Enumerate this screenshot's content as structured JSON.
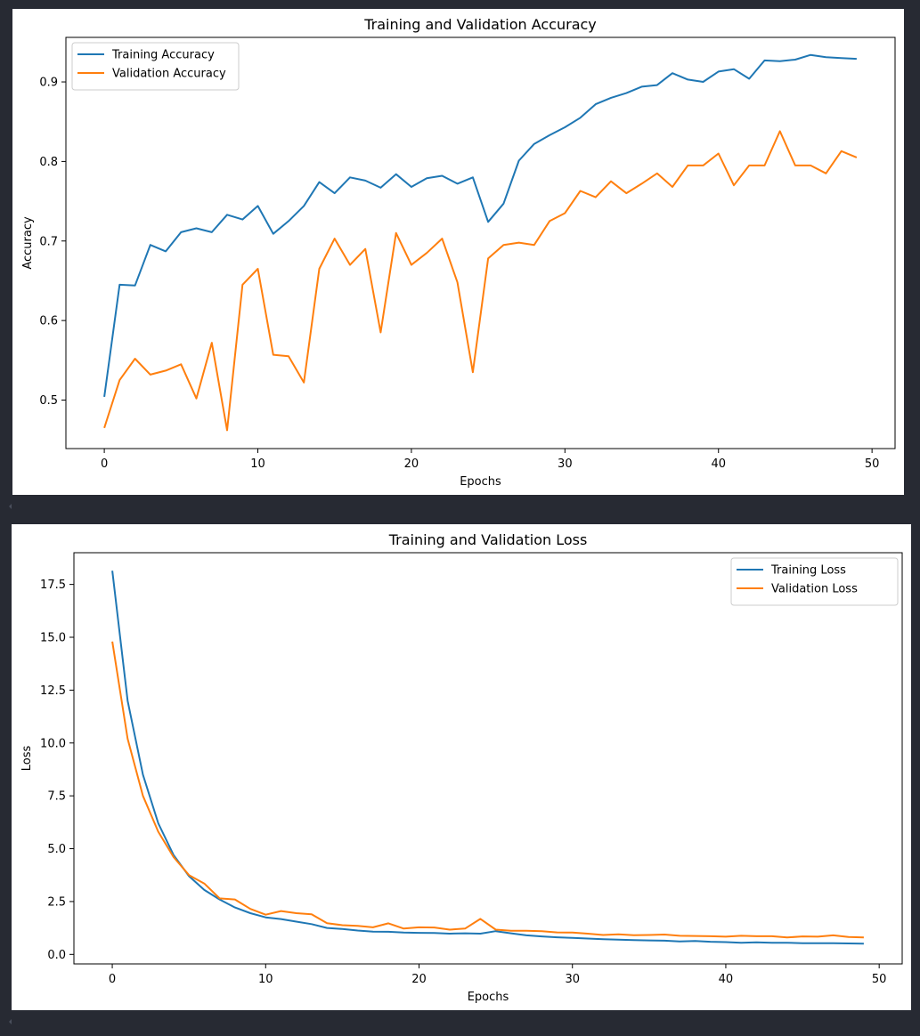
{
  "chart_data": [
    {
      "type": "line",
      "title": "Training and Validation Accuracy",
      "xlabel": "Epochs",
      "ylabel": "Accuracy",
      "xlim": [
        -2.5,
        51.5
      ],
      "ylim": [
        0.439,
        0.956
      ],
      "xticks": [
        0,
        10,
        20,
        30,
        40,
        50
      ],
      "xtick_labels": [
        "0",
        "10",
        "20",
        "30",
        "40",
        "50"
      ],
      "yticks": [
        0.5,
        0.6,
        0.7,
        0.8,
        0.9
      ],
      "ytick_labels": [
        "0.5",
        "0.6",
        "0.7",
        "0.8",
        "0.9"
      ],
      "grid": false,
      "legend_position": "top-left",
      "x": [
        0,
        1,
        2,
        3,
        4,
        5,
        6,
        7,
        8,
        9,
        10,
        11,
        12,
        13,
        14,
        15,
        16,
        17,
        18,
        19,
        20,
        21,
        22,
        23,
        24,
        25,
        26,
        27,
        28,
        29,
        30,
        31,
        32,
        33,
        34,
        35,
        36,
        37,
        38,
        39,
        40,
        41,
        42,
        43,
        44,
        45,
        46,
        47,
        48,
        49
      ],
      "series": [
        {
          "name": "Training Accuracy",
          "color": "#1f77b4",
          "values": [
            0.504,
            0.645,
            0.644,
            0.695,
            0.687,
            0.711,
            0.716,
            0.711,
            0.733,
            0.727,
            0.744,
            0.709,
            0.725,
            0.744,
            0.774,
            0.76,
            0.78,
            0.776,
            0.767,
            0.784,
            0.768,
            0.779,
            0.782,
            0.772,
            0.78,
            0.724,
            0.747,
            0.801,
            0.822,
            0.833,
            0.843,
            0.855,
            0.872,
            0.88,
            0.886,
            0.894,
            0.896,
            0.911,
            0.903,
            0.9,
            0.913,
            0.916,
            0.904,
            0.927,
            0.926,
            0.928,
            0.934,
            0.931,
            0.93,
            0.929
          ]
        },
        {
          "name": "Validation Accuracy",
          "color": "#ff7f0e",
          "values": [
            0.465,
            0.525,
            0.552,
            0.532,
            0.537,
            0.545,
            0.502,
            0.572,
            0.462,
            0.645,
            0.665,
            0.557,
            0.555,
            0.522,
            0.665,
            0.703,
            0.67,
            0.69,
            0.585,
            0.71,
            0.67,
            0.685,
            0.703,
            0.648,
            0.535,
            0.678,
            0.695,
            0.698,
            0.695,
            0.725,
            0.735,
            0.763,
            0.755,
            0.775,
            0.76,
            0.772,
            0.785,
            0.768,
            0.795,
            0.795,
            0.81,
            0.77,
            0.795,
            0.795,
            0.838,
            0.795,
            0.795,
            0.785,
            0.813,
            0.805
          ]
        }
      ]
    },
    {
      "type": "line",
      "title": "Training and Validation Loss",
      "xlabel": "Epochs",
      "ylabel": "Loss",
      "xlim": [
        -2.5,
        51.5
      ],
      "ylim": [
        -0.45,
        19.0
      ],
      "xticks": [
        0,
        10,
        20,
        30,
        40,
        50
      ],
      "xtick_labels": [
        "0",
        "10",
        "20",
        "30",
        "40",
        "50"
      ],
      "yticks": [
        0.0,
        2.5,
        5.0,
        7.5,
        10.0,
        12.5,
        15.0,
        17.5
      ],
      "ytick_labels": [
        "0.0",
        "2.5",
        "5.0",
        "7.5",
        "10.0",
        "12.5",
        "15.0",
        "17.5"
      ],
      "grid": false,
      "legend_position": "top-right",
      "x": [
        0,
        1,
        2,
        3,
        4,
        5,
        6,
        7,
        8,
        9,
        10,
        11,
        12,
        13,
        14,
        15,
        16,
        17,
        18,
        19,
        20,
        21,
        22,
        23,
        24,
        25,
        26,
        27,
        28,
        29,
        30,
        31,
        32,
        33,
        34,
        35,
        36,
        37,
        38,
        39,
        40,
        41,
        42,
        43,
        44,
        45,
        46,
        47,
        48,
        49
      ],
      "series": [
        {
          "name": "Training Loss",
          "color": "#1f77b4",
          "values": [
            18.15,
            12.0,
            8.5,
            6.2,
            4.7,
            3.7,
            3.05,
            2.6,
            2.22,
            1.95,
            1.75,
            1.67,
            1.55,
            1.43,
            1.25,
            1.2,
            1.13,
            1.08,
            1.07,
            1.03,
            1.02,
            1.01,
            0.98,
            1.0,
            0.98,
            1.1,
            1.0,
            0.9,
            0.85,
            0.81,
            0.78,
            0.75,
            0.72,
            0.7,
            0.68,
            0.66,
            0.65,
            0.61,
            0.63,
            0.6,
            0.58,
            0.55,
            0.57,
            0.55,
            0.55,
            0.53,
            0.53,
            0.53,
            0.52,
            0.51
          ]
        },
        {
          "name": "Validation Loss",
          "color": "#ff7f0e",
          "values": [
            14.8,
            10.2,
            7.5,
            5.8,
            4.6,
            3.75,
            3.35,
            2.65,
            2.6,
            2.15,
            1.88,
            2.05,
            1.95,
            1.9,
            1.48,
            1.38,
            1.35,
            1.28,
            1.47,
            1.22,
            1.28,
            1.27,
            1.17,
            1.22,
            1.68,
            1.17,
            1.12,
            1.12,
            1.1,
            1.04,
            1.03,
            0.98,
            0.92,
            0.95,
            0.91,
            0.92,
            0.94,
            0.88,
            0.87,
            0.86,
            0.84,
            0.88,
            0.86,
            0.86,
            0.8,
            0.85,
            0.84,
            0.9,
            0.82,
            0.8
          ]
        }
      ]
    }
  ]
}
